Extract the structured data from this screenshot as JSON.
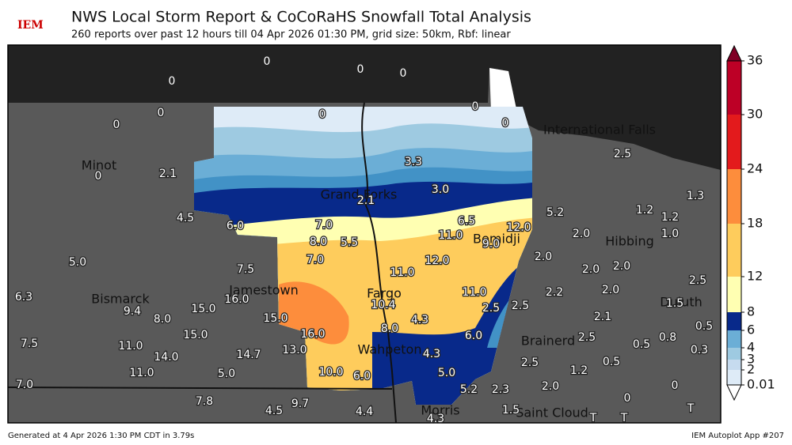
{
  "header": {
    "logo": "IEM",
    "title": "NWS Local Storm Report & CoCoRaHS Snowfall Total Analysis",
    "subtitle": "260 reports over past 12 hours till 04 Apr 2026 01:30 PM, grid size: 50km, Rbf: linear"
  },
  "cities": [
    "Minot",
    "Grand Forks",
    "Bemidji",
    "Hibbing",
    "International Falls",
    "Jamestown",
    "Bismarck",
    "Fargo",
    "Duluth",
    "Brainerd",
    "Wahpeton",
    "Morris",
    "Saint Cloud"
  ],
  "reports": [
    "0",
    "0",
    "0",
    "0",
    "0",
    "0",
    "0",
    "0",
    "0",
    "0",
    "2.1",
    "3.3",
    "3.0",
    "2.5",
    "1.3",
    "1.2",
    "1.2",
    "1.0",
    "5.2",
    "4.5",
    "6.0",
    "7.0",
    "2.1",
    "6.5",
    "12.0",
    "11.0",
    "9.0",
    "8.0",
    "5.5",
    "7.0",
    "12.0",
    "2.0",
    "2.0",
    "2.0",
    "2.0",
    "5.0",
    "7.5",
    "11.0",
    "2.5",
    "6.3",
    "16.0",
    "10.4",
    "11.0",
    "2.2",
    "2.0",
    "9.4",
    "15.0",
    "8.0",
    "15.0",
    "2.5",
    "2.5",
    "1.5",
    "2.1",
    "0.5",
    "8.0",
    "4.3",
    "16.0",
    "6.0",
    "15.0",
    "0.8",
    "2.5",
    "0.5",
    "0.3",
    "7.5",
    "11.0",
    "14.7",
    "13.0",
    "14.0",
    "4.3",
    "2.5",
    "0.5",
    "1.2",
    "11.0",
    "5.0",
    "10.0",
    "6.0",
    "5.0",
    "7.0",
    "2.0",
    "0",
    "0",
    "7.8",
    "9.7",
    "4.5",
    "4.4",
    "5.2",
    "2.3",
    "1.5",
    "4.3",
    "T",
    "T",
    "T"
  ],
  "colorbar": {
    "ticks": [
      0.01,
      2,
      3,
      4,
      6,
      8,
      12,
      18,
      24,
      30,
      36
    ],
    "colors": [
      "#deebf7",
      "#c6dbef",
      "#9ecae1",
      "#6baed6",
      "#08298a",
      "#ffffb2",
      "#fecc5c",
      "#fd8d3c",
      "#e31a1c",
      "#bd0026",
      "#800026"
    ]
  },
  "footer": {
    "left": "Generated at 4 Apr 2026 1:30 PM CDT in 3.79s",
    "right": "IEM Autoplot App #207"
  }
}
